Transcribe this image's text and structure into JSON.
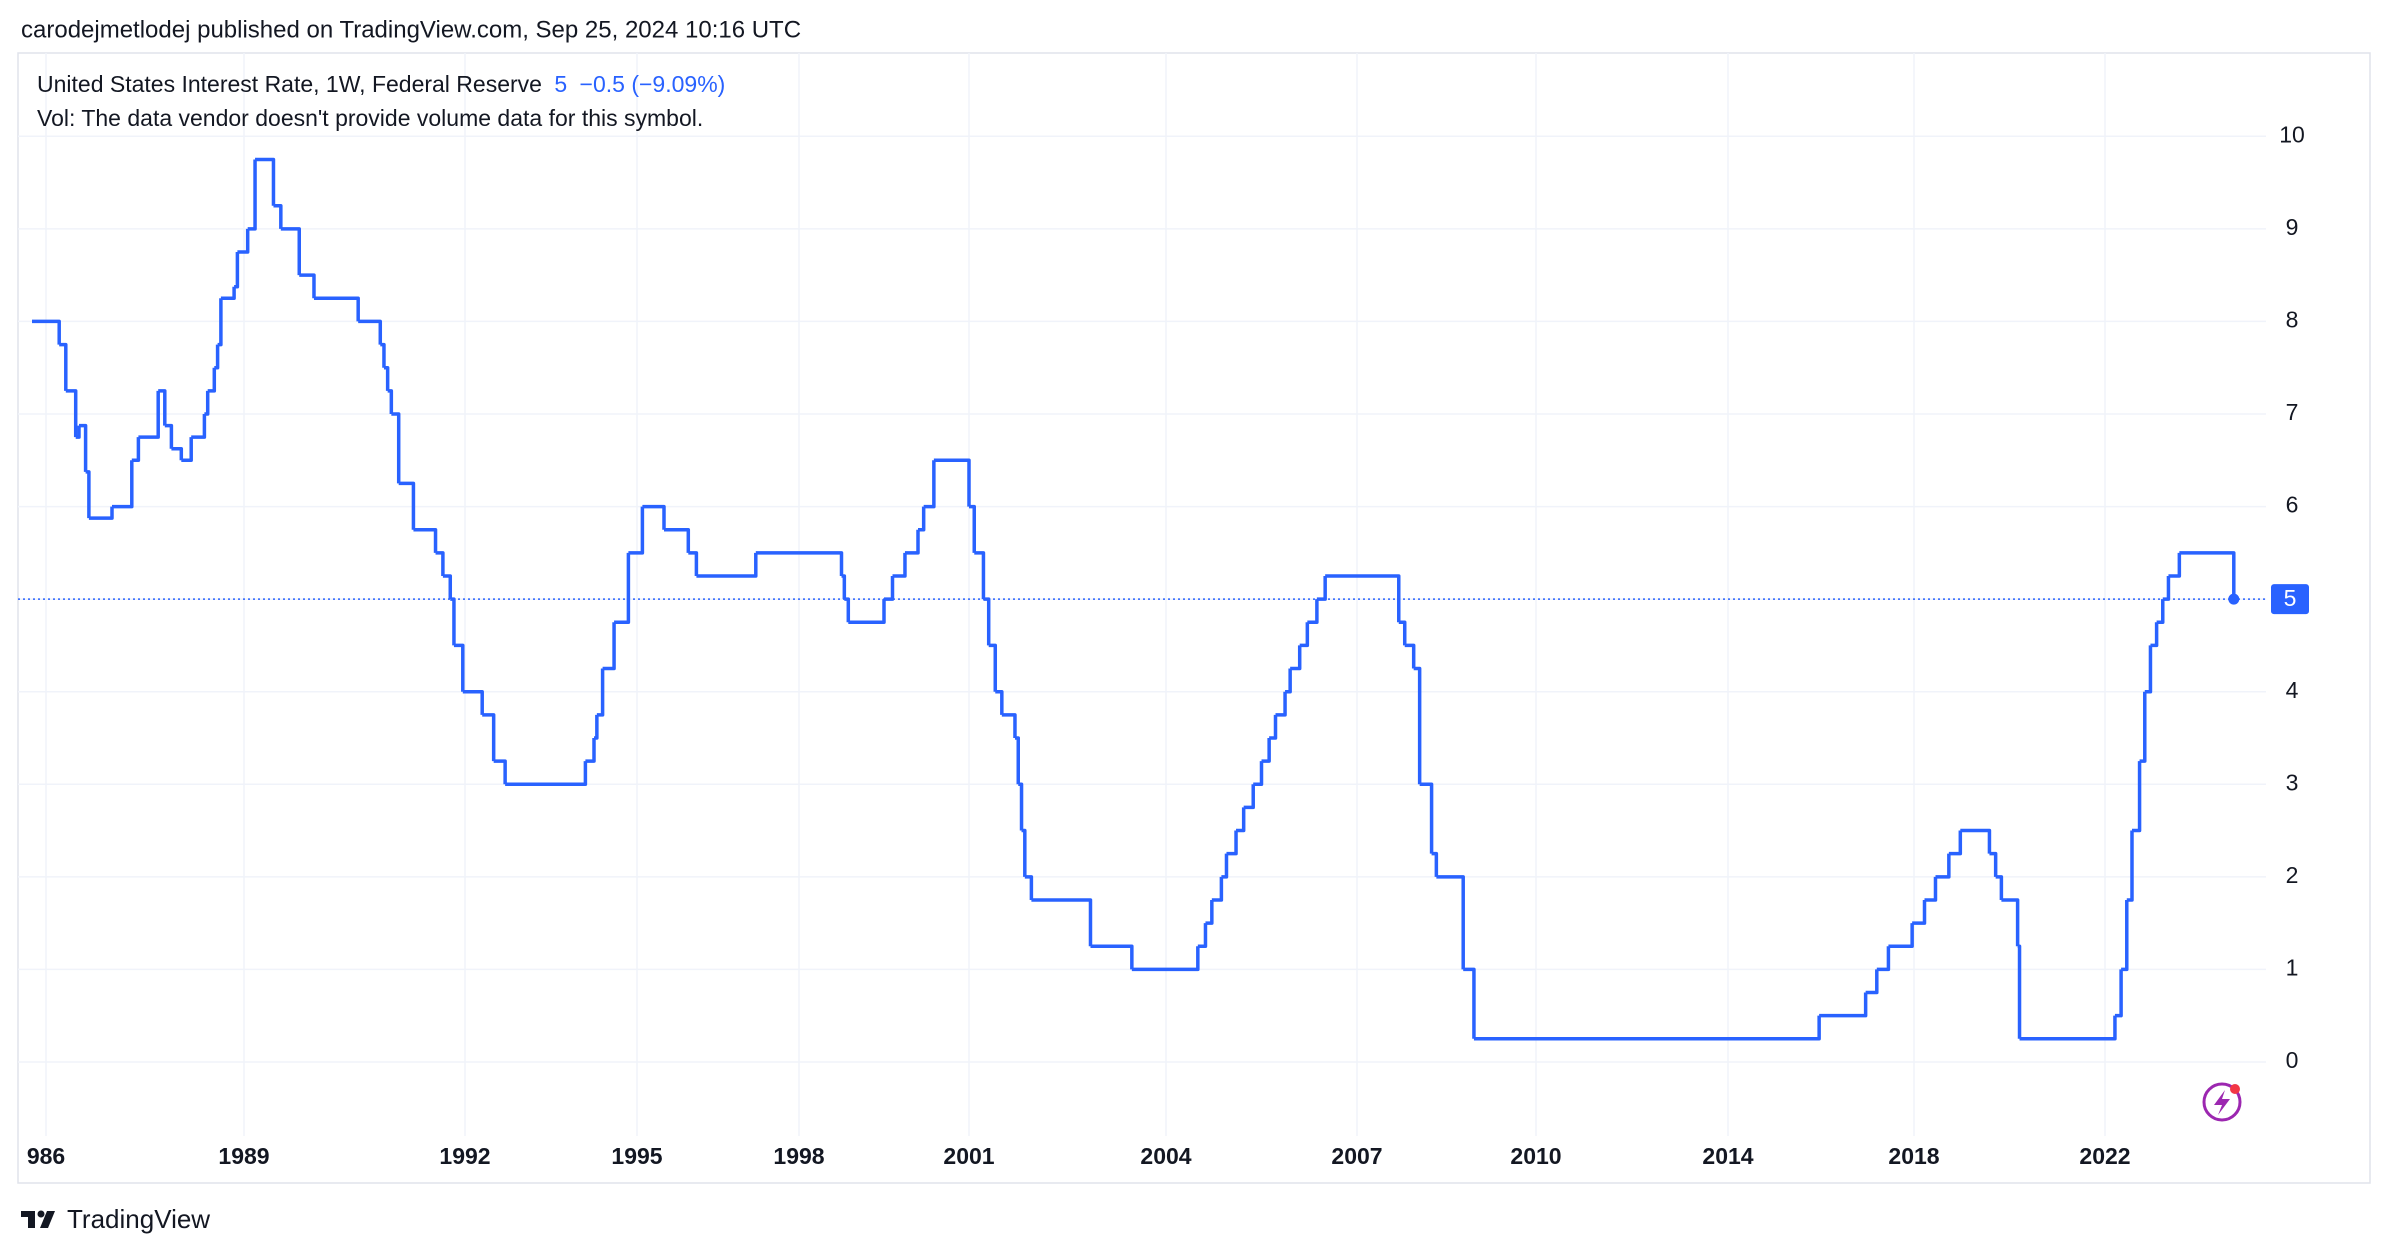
{
  "header": {
    "attribution": "carodejmetlodej published on TradingView.com, Sep 25, 2024 10:16 UTC"
  },
  "chart_data": {
    "type": "line",
    "legend": {
      "symbol": "United States Interest Rate, 1W, Federal Reserve",
      "change": "−0.5 (−9.09%)",
      "volume_note": "Vol: The data vendor doesn't provide volume data for this symbol."
    },
    "last_value": 5,
    "x": [
      1985.8,
      1986.2,
      1986.3,
      1986.45,
      1986.5,
      1986.6,
      1986.65,
      1987.0,
      1987.3,
      1987.4,
      1987.7,
      1987.8,
      1987.9,
      1988.05,
      1988.2,
      1988.4,
      1988.45,
      1988.55,
      1988.6,
      1988.65,
      1988.85,
      1988.9,
      1989.05,
      1989.15,
      1989.4,
      1989.5,
      1989.75,
      1989.95,
      1990.55,
      1990.85,
      1990.9,
      1990.95,
      1991.0,
      1991.1,
      1991.3,
      1991.6,
      1991.7,
      1991.8,
      1991.85,
      1991.97,
      1992.3,
      1992.5,
      1992.7,
      1994.1,
      1994.25,
      1994.3,
      1994.4,
      1994.6,
      1994.85,
      1995.1,
      1995.5,
      1995.95,
      1996.1,
      1997.2,
      1998.75,
      1998.8,
      1998.87,
      1999.5,
      1999.65,
      1999.87,
      2000.1,
      2000.2,
      2000.38,
      2001.0,
      2001.08,
      2001.22,
      2001.3,
      2001.4,
      2001.5,
      2001.7,
      2001.75,
      2001.8,
      2001.85,
      2001.95,
      2002.85,
      2003.48,
      2004.5,
      2004.62,
      2004.72,
      2004.87,
      2004.95,
      2005.1,
      2005.22,
      2005.37,
      2005.5,
      2005.62,
      2005.72,
      2005.87,
      2005.95,
      2006.1,
      2006.22,
      2006.37,
      2006.5,
      2007.7,
      2007.8,
      2007.95,
      2008.05,
      2008.25,
      2008.33,
      2008.78,
      2008.96,
      2015.96,
      2016.96,
      2017.2,
      2017.45,
      2017.96,
      2018.22,
      2018.45,
      2018.73,
      2018.97,
      2019.58,
      2019.71,
      2019.83,
      2020.17,
      2020.21,
      2022.21,
      2022.34,
      2022.46,
      2022.57,
      2022.73,
      2022.84,
      2022.96,
      2023.09,
      2023.22,
      2023.34,
      2023.57,
      2024.72
    ],
    "series": [
      {
        "color": "#2962ff",
        "values": [
          8,
          7.75,
          7.25,
          6.75,
          6.875,
          6.375,
          5.875,
          6,
          6.5,
          6.75,
          7.25,
          6.875,
          6.625,
          6.5,
          6.75,
          7,
          7.25,
          7.5,
          7.75,
          8.25,
          8.375,
          8.75,
          9,
          9.75,
          9.25,
          9,
          8.5,
          8.25,
          8,
          7.75,
          7.5,
          7.25,
          7,
          6.25,
          5.75,
          5.5,
          5.25,
          5,
          4.5,
          4,
          3.75,
          3.25,
          3,
          3.25,
          3.5,
          3.75,
          4.25,
          4.75,
          5.5,
          6,
          5.75,
          5.5,
          5.25,
          5.5,
          5.25,
          5,
          4.75,
          5,
          5.25,
          5.5,
          5.75,
          6,
          6.5,
          6,
          5.5,
          5,
          4.5,
          4,
          3.75,
          3.5,
          3,
          2.5,
          2,
          1.75,
          1.25,
          1,
          1.25,
          1.5,
          1.75,
          2,
          2.25,
          2.5,
          2.75,
          3,
          3.25,
          3.5,
          3.75,
          4,
          4.25,
          4.5,
          4.75,
          5,
          5.25,
          4.75,
          4.5,
          4.25,
          3,
          2.25,
          2,
          1,
          0.25,
          0.5,
          0.75,
          1,
          1.25,
          1.5,
          1.75,
          2,
          2.25,
          2.5,
          2.25,
          2,
          1.75,
          1.25,
          0.25,
          0.5,
          1,
          1.75,
          2.5,
          3.25,
          4,
          4.5,
          4.75,
          5,
          5.25,
          5.5,
          5
        ]
      }
    ],
    "xlim": [
      1985.6,
      2025.4
    ],
    "xticks": [
      {
        "value": 1986,
        "label": "986"
      },
      1989,
      1992,
      1995,
      1998,
      2001,
      2004,
      2007,
      2010,
      2014,
      2018,
      2022
    ],
    "ylim": [
      -0.8,
      10.9
    ],
    "yticks": [
      0,
      1,
      2,
      3,
      4,
      5,
      6,
      7,
      8,
      9,
      10
    ],
    "grid": true
  },
  "footer": {
    "brand": "TradingView"
  }
}
